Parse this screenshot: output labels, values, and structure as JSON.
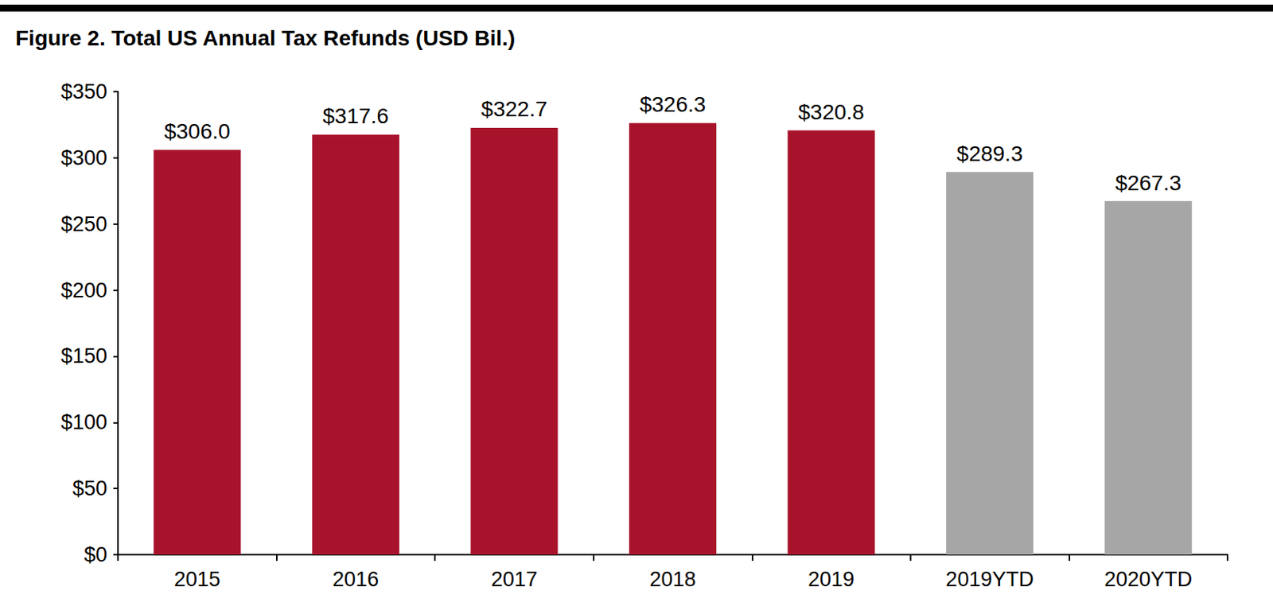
{
  "chart_data": {
    "type": "bar",
    "title": "Figure 2. Total US Annual Tax Refunds (USD Bil.)",
    "categories": [
      "2015",
      "2016",
      "2017",
      "2018",
      "2019",
      "2019YTD",
      "2020YTD"
    ],
    "values": [
      306.0,
      317.6,
      322.7,
      326.3,
      320.8,
      289.3,
      267.3
    ],
    "value_labels": [
      "$306.0",
      "$317.6",
      "$322.7",
      "$326.3",
      "$320.8",
      "$289.3",
      "$267.3"
    ],
    "colors": [
      "#a8132c",
      "#a8132c",
      "#a8132c",
      "#a8132c",
      "#a8132c",
      "#a6a6a6",
      "#a6a6a6"
    ],
    "ylim": [
      0,
      350
    ],
    "yticks": [
      {
        "value": 0,
        "label": "$0"
      },
      {
        "value": 50,
        "label": "$50"
      },
      {
        "value": 100,
        "label": "$100"
      },
      {
        "value": 150,
        "label": "$150"
      },
      {
        "value": 200,
        "label": "$200"
      },
      {
        "value": 250,
        "label": "$250"
      },
      {
        "value": 300,
        "label": "$300"
      },
      {
        "value": 350,
        "label": "$350"
      }
    ],
    "grid": false,
    "data_labels": true
  }
}
